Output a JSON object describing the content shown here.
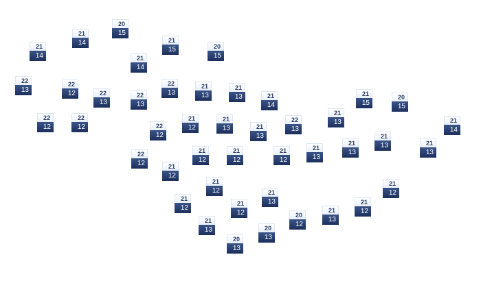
{
  "stations": [
    {
      "high": "20",
      "low": "15"
    },
    {
      "high": "21",
      "low": "14"
    },
    {
      "high": "21",
      "low": "14"
    },
    {
      "high": "21",
      "low": "15"
    },
    {
      "high": "20",
      "low": "15"
    },
    {
      "high": "21",
      "low": "14"
    },
    {
      "high": "22",
      "low": "13"
    },
    {
      "high": "22",
      "low": "12"
    },
    {
      "high": "22",
      "low": "13"
    },
    {
      "high": "22",
      "low": "13"
    },
    {
      "high": "22",
      "low": "13"
    },
    {
      "high": "21",
      "low": "13"
    },
    {
      "high": "21",
      "low": "13"
    },
    {
      "high": "21",
      "low": "14"
    },
    {
      "high": "22",
      "low": "12"
    },
    {
      "high": "22",
      "low": "12"
    },
    {
      "high": "22",
      "low": "12"
    },
    {
      "high": "21",
      "low": "12"
    },
    {
      "high": "21",
      "low": "13"
    },
    {
      "high": "21",
      "low": "13"
    },
    {
      "high": "22",
      "low": "13"
    },
    {
      "high": "21",
      "low": "13"
    },
    {
      "high": "21",
      "low": "15"
    },
    {
      "high": "20",
      "low": "15"
    },
    {
      "high": "21",
      "low": "14"
    },
    {
      "high": "21",
      "low": "13"
    },
    {
      "high": "21",
      "low": "13"
    },
    {
      "high": "21",
      "low": "13"
    },
    {
      "high": "21",
      "low": "12"
    },
    {
      "high": "21",
      "low": "13"
    },
    {
      "high": "21",
      "low": "12"
    },
    {
      "high": "21",
      "low": "12"
    },
    {
      "high": "22",
      "low": "12"
    },
    {
      "high": "21",
      "low": "12"
    },
    {
      "high": "21",
      "low": "12"
    },
    {
      "high": "21",
      "low": "12"
    },
    {
      "high": "21",
      "low": "12"
    },
    {
      "high": "21",
      "low": "13"
    },
    {
      "high": "21",
      "low": "12"
    },
    {
      "high": "21",
      "low": "12"
    },
    {
      "high": "21",
      "low": "13"
    },
    {
      "high": "20",
      "low": "12"
    },
    {
      "high": "21",
      "low": "13"
    },
    {
      "high": "20",
      "low": "13"
    },
    {
      "high": "20",
      "low": "13"
    }
  ]
}
